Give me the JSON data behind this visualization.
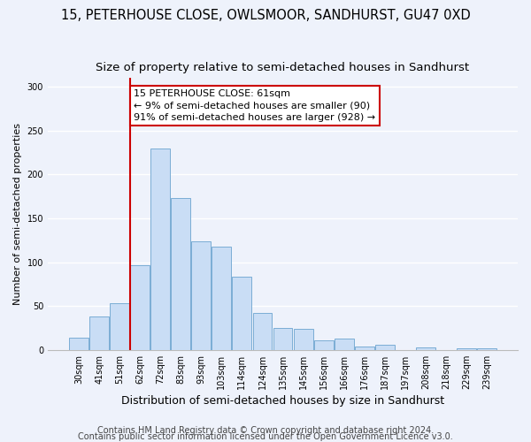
{
  "title": "15, PETERHOUSE CLOSE, OWLSMOOR, SANDHURST, GU47 0XD",
  "subtitle": "Size of property relative to semi-detached houses in Sandhurst",
  "xlabel": "Distribution of semi-detached houses by size in Sandhurst",
  "ylabel": "Number of semi-detached properties",
  "categories": [
    "30sqm",
    "41sqm",
    "51sqm",
    "62sqm",
    "72sqm",
    "83sqm",
    "93sqm",
    "103sqm",
    "114sqm",
    "124sqm",
    "135sqm",
    "145sqm",
    "156sqm",
    "166sqm",
    "176sqm",
    "187sqm",
    "197sqm",
    "208sqm",
    "218sqm",
    "229sqm",
    "239sqm"
  ],
  "values": [
    14,
    38,
    53,
    97,
    230,
    173,
    124,
    118,
    83,
    42,
    25,
    24,
    11,
    13,
    4,
    6,
    0,
    3,
    0,
    2,
    2
  ],
  "bar_color": "#c9ddf5",
  "bar_edge_color": "#7aadd4",
  "highlight_index": 3,
  "highlight_line_color": "#cc0000",
  "annotation_line1": "15 PETERHOUSE CLOSE: 61sqm",
  "annotation_line2": "← 9% of semi-detached houses are smaller (90)",
  "annotation_line3": "91% of semi-detached houses are larger (928) →",
  "annotation_box_color": "#ffffff",
  "annotation_box_edge": "#cc0000",
  "ylim": [
    0,
    310
  ],
  "yticks": [
    0,
    50,
    100,
    150,
    200,
    250,
    300
  ],
  "footer1": "Contains HM Land Registry data © Crown copyright and database right 2024.",
  "footer2": "Contains public sector information licensed under the Open Government Licence v3.0.",
  "background_color": "#eef2fb",
  "grid_color": "#ffffff",
  "title_fontsize": 10.5,
  "subtitle_fontsize": 9.5,
  "xlabel_fontsize": 9,
  "ylabel_fontsize": 8,
  "tick_fontsize": 7,
  "annotation_fontsize": 8,
  "footer_fontsize": 7
}
